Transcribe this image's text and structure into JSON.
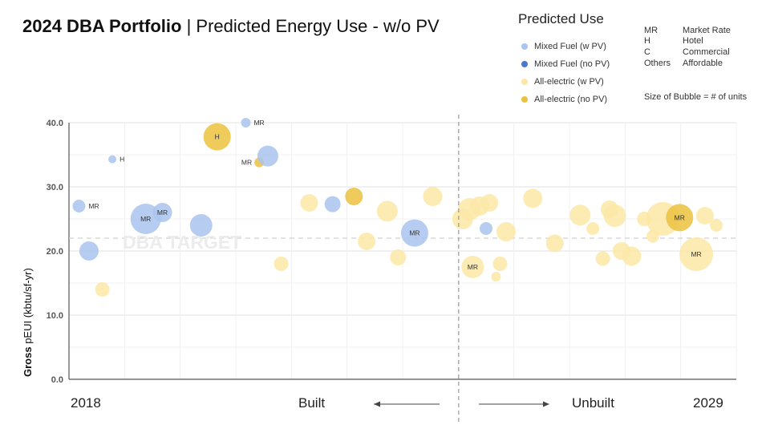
{
  "title": {
    "bold": "2024 DBA Portfolio",
    "separator": "|",
    "rest": "Predicted Energy Use - w/o PV"
  },
  "legend": {
    "title": "Predicted Use",
    "items": [
      {
        "label": "Mixed Fuel (w PV)",
        "color": "#a9c4ef"
      },
      {
        "label": "Mixed Fuel (no PV)",
        "color": "#4a78cf"
      },
      {
        "label": "All-electric (w PV)",
        "color": "#fbe7a6"
      },
      {
        "label": "All-electric (no PV)",
        "color": "#ebc23e"
      }
    ]
  },
  "abbreviations": [
    {
      "code": "MR",
      "meaning": "Market Rate"
    },
    {
      "code": "H",
      "meaning": "Hotel"
    },
    {
      "code": "C",
      "meaning": "Commercial"
    },
    {
      "code": "Others",
      "meaning": "Affordable"
    }
  ],
  "bubble_note": "Size of Bubble = # of units",
  "footer": {
    "start_year": "2018",
    "built": "Built",
    "unbuilt": "Unbuilt",
    "end_year": "2029"
  },
  "chart_data": {
    "type": "scatter",
    "ylabel_bold": "Gross",
    "ylabel_rest": "pEUI (kbtu/sf-yr)",
    "ylim": [
      0,
      40
    ],
    "yticks": [
      "0.0",
      "10.0",
      "20.0",
      "30.0",
      "40.0"
    ],
    "xlim": [
      0,
      100
    ],
    "divider_x": 58.4,
    "target": {
      "label": "DBA TARGET",
      "value": 22
    },
    "colors": {
      "mixed_pv": "#a9c4ef",
      "mixed_nopv": "#4a78cf",
      "elec_pv": "#fbe7a6",
      "elec_nopv": "#ebc23e"
    },
    "points": [
      {
        "x": 1.5,
        "y": 27.0,
        "size": 8,
        "cat": "mixed_pv",
        "label": "MR",
        "label_pos": "right"
      },
      {
        "x": 3.0,
        "y": 20.0,
        "size": 12,
        "cat": "mixed_pv"
      },
      {
        "x": 5.0,
        "y": 14.0,
        "size": 9,
        "cat": "elec_pv"
      },
      {
        "x": 6.5,
        "y": 34.3,
        "size": 5,
        "cat": "mixed_pv",
        "label": "H",
        "label_pos": "right"
      },
      {
        "x": 11.5,
        "y": 25.0,
        "size": 19,
        "cat": "mixed_pv",
        "label": "MR",
        "label_pos": "center"
      },
      {
        "x": 14.0,
        "y": 26.0,
        "size": 12,
        "cat": "mixed_pv",
        "label": "MR",
        "label_pos": "center"
      },
      {
        "x": 19.8,
        "y": 24.0,
        "size": 14,
        "cat": "mixed_pv"
      },
      {
        "x": 22.2,
        "y": 37.8,
        "size": 17,
        "cat": "elec_nopv",
        "label": "H",
        "label_pos": "center"
      },
      {
        "x": 26.5,
        "y": 40.0,
        "size": 6,
        "cat": "mixed_pv",
        "label": "MR",
        "label_pos": "right"
      },
      {
        "x": 28.5,
        "y": 33.8,
        "size": 6,
        "cat": "elec_nopv",
        "label": "MR",
        "label_pos": "left"
      },
      {
        "x": 29.8,
        "y": 34.8,
        "size": 13,
        "cat": "mixed_pv"
      },
      {
        "x": 31.8,
        "y": 18.0,
        "size": 9,
        "cat": "elec_pv"
      },
      {
        "x": 36.0,
        "y": 27.5,
        "size": 11,
        "cat": "elec_pv"
      },
      {
        "x": 39.5,
        "y": 27.3,
        "size": 10,
        "cat": "mixed_pv"
      },
      {
        "x": 42.7,
        "y": 28.5,
        "size": 11,
        "cat": "elec_nopv"
      },
      {
        "x": 44.6,
        "y": 21.5,
        "size": 11,
        "cat": "elec_pv"
      },
      {
        "x": 47.7,
        "y": 26.2,
        "size": 13,
        "cat": "elec_pv"
      },
      {
        "x": 49.3,
        "y": 19.0,
        "size": 10,
        "cat": "elec_pv"
      },
      {
        "x": 51.8,
        "y": 22.8,
        "size": 17,
        "cat": "mixed_pv",
        "label": "MR",
        "label_pos": "center"
      },
      {
        "x": 54.5,
        "y": 28.5,
        "size": 12,
        "cat": "elec_pv"
      },
      {
        "x": 59.0,
        "y": 25.0,
        "size": 13,
        "cat": "elec_pv"
      },
      {
        "x": 60.0,
        "y": 26.5,
        "size": 14,
        "cat": "elec_pv"
      },
      {
        "x": 61.5,
        "y": 27.0,
        "size": 12,
        "cat": "elec_pv"
      },
      {
        "x": 63.0,
        "y": 27.5,
        "size": 11,
        "cat": "elec_pv"
      },
      {
        "x": 60.5,
        "y": 17.5,
        "size": 14,
        "cat": "elec_pv",
        "label": "MR",
        "label_pos": "center"
      },
      {
        "x": 62.5,
        "y": 23.5,
        "size": 8,
        "cat": "mixed_pv"
      },
      {
        "x": 64.6,
        "y": 18.0,
        "size": 9,
        "cat": "elec_pv"
      },
      {
        "x": 64.0,
        "y": 16.0,
        "size": 6,
        "cat": "elec_pv"
      },
      {
        "x": 65.5,
        "y": 23.0,
        "size": 12,
        "cat": "elec_pv"
      },
      {
        "x": 69.5,
        "y": 28.2,
        "size": 12,
        "cat": "elec_pv"
      },
      {
        "x": 72.8,
        "y": 21.2,
        "size": 11,
        "cat": "elec_pv"
      },
      {
        "x": 76.6,
        "y": 25.6,
        "size": 13,
        "cat": "elec_pv"
      },
      {
        "x": 78.5,
        "y": 23.5,
        "size": 8,
        "cat": "elec_pv"
      },
      {
        "x": 80.0,
        "y": 18.8,
        "size": 9,
        "cat": "elec_pv"
      },
      {
        "x": 81.0,
        "y": 26.5,
        "size": 11,
        "cat": "elec_pv"
      },
      {
        "x": 81.8,
        "y": 25.5,
        "size": 14,
        "cat": "elec_pv"
      },
      {
        "x": 82.8,
        "y": 20.0,
        "size": 11,
        "cat": "elec_pv"
      },
      {
        "x": 84.3,
        "y": 19.2,
        "size": 12,
        "cat": "elec_pv"
      },
      {
        "x": 86.2,
        "y": 25.0,
        "size": 9,
        "cat": "elec_pv"
      },
      {
        "x": 87.5,
        "y": 22.3,
        "size": 8,
        "cat": "elec_pv"
      },
      {
        "x": 89.0,
        "y": 25.0,
        "size": 21,
        "cat": "elec_pv"
      },
      {
        "x": 91.5,
        "y": 25.2,
        "size": 17,
        "cat": "elec_nopv",
        "label": "MR",
        "label_pos": "center"
      },
      {
        "x": 94.0,
        "y": 19.5,
        "size": 21,
        "cat": "elec_pv",
        "label": "MR",
        "label_pos": "center"
      },
      {
        "x": 95.3,
        "y": 25.5,
        "size": 11,
        "cat": "elec_pv"
      },
      {
        "x": 97.0,
        "y": 24.0,
        "size": 8,
        "cat": "elec_pv"
      }
    ]
  }
}
